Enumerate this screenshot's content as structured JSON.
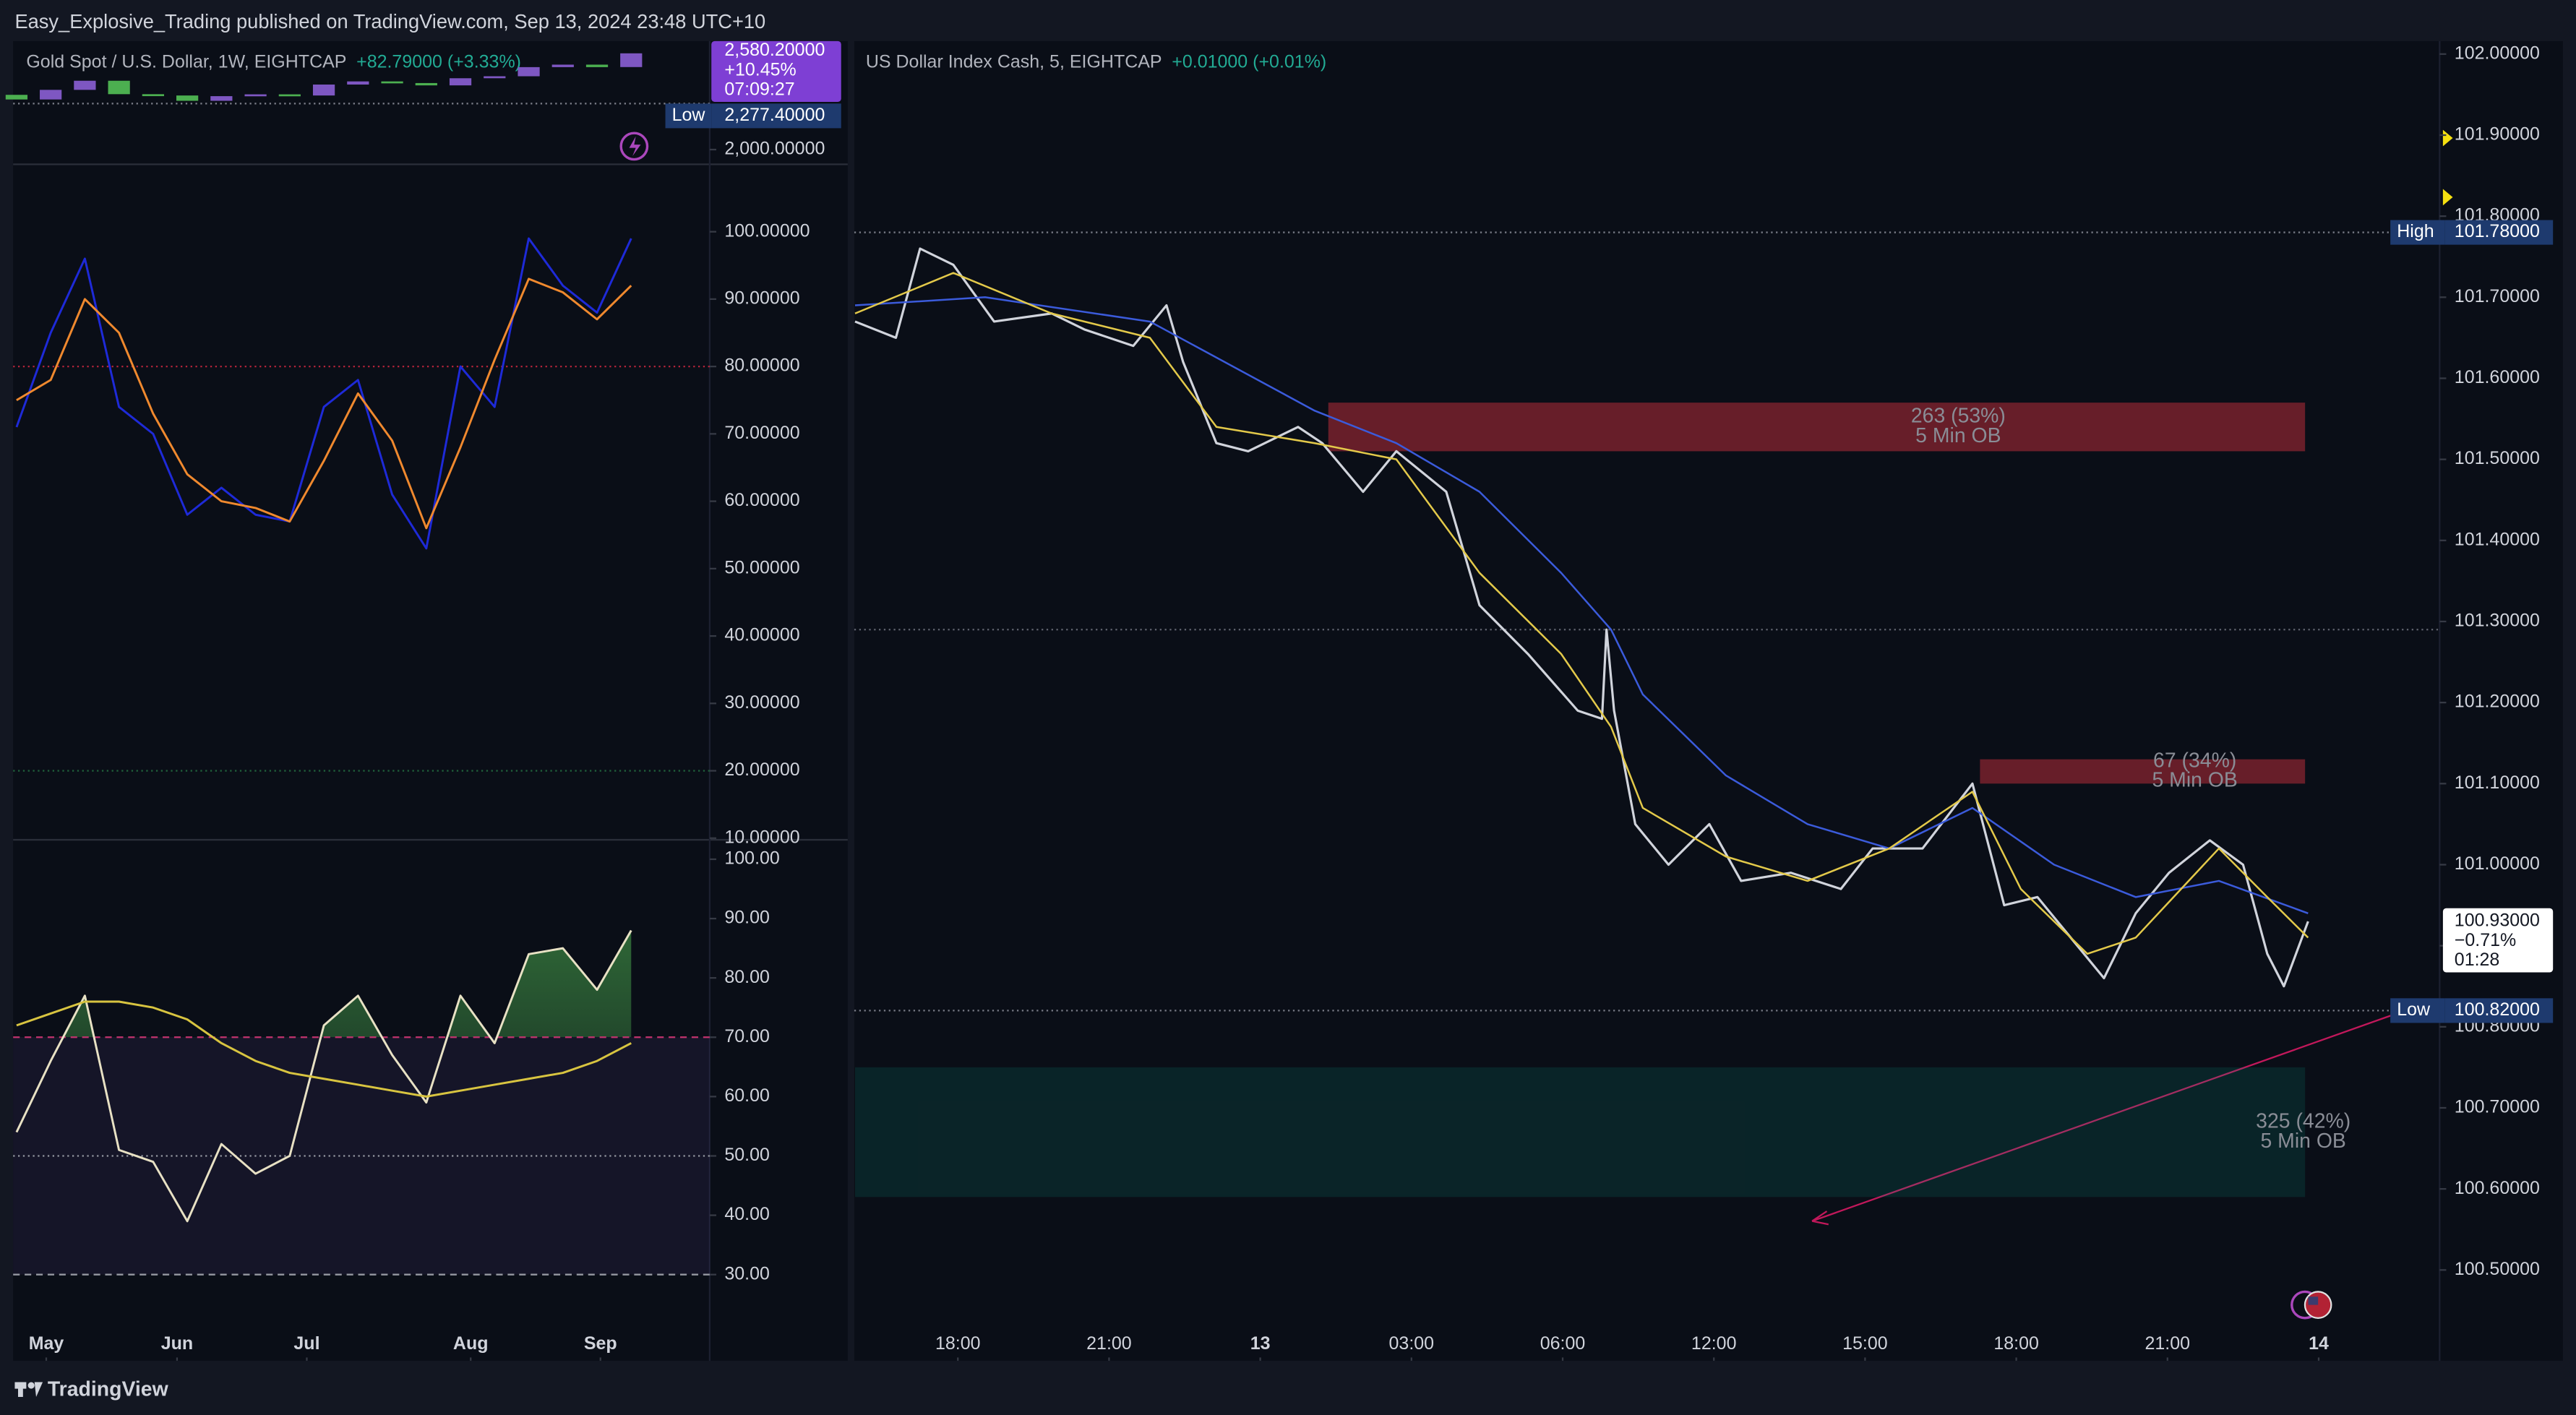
{
  "header": {
    "text": "Easy_Explosive_Trading published on TradingView.com, Sep 13, 2024 23:48 UTC+10"
  },
  "footer": {
    "brand": "TradingView"
  },
  "chart_data": [
    {
      "type": "candlestick",
      "title": "Gold Spot / U.S. Dollar, 1W, EIGHTCAP",
      "change": "+82.79000 (+3.33%)",
      "x": [
        0,
        1,
        2,
        3,
        4,
        5,
        6,
        7,
        8,
        9,
        10,
        11,
        12,
        13,
        14,
        15,
        16,
        17,
        18
      ],
      "open": [
        2330,
        2302,
        2360,
        2415,
        2334,
        2326,
        2294,
        2322,
        2333,
        2326,
        2392,
        2411,
        2401,
        2387,
        2430,
        2442,
        2497,
        2512,
        2497.41
      ],
      "close": [
        2302,
        2360,
        2415,
        2334,
        2326,
        2294,
        2322,
        2333,
        2326,
        2392,
        2411,
        2401,
        2387,
        2430,
        2442,
        2497,
        2512,
        2497,
        2580.2
      ],
      "up_color": "#7e57c2",
      "down_color": "#4caf50",
      "xlim": [
        -0.1,
        20.3
      ],
      "ylim": [
        1911,
        2654
      ],
      "yticks": [
        {
          "value": 2000,
          "label": "2,000.00000"
        }
      ],
      "last_price": {
        "value": 2580.2,
        "label": "2,580.20000"
      },
      "last_change": "+10.45%",
      "countdown": "07:09:27",
      "low": {
        "name": "Low",
        "value": 2277.4,
        "label": "2,277.40000"
      }
    },
    {
      "type": "line",
      "xlim": [
        -0.1,
        20.3
      ],
      "ylim": [
        10,
        110
      ],
      "x": [
        0,
        1,
        2,
        3,
        4,
        5,
        6,
        7,
        8,
        9,
        10,
        11,
        12,
        13,
        14,
        15,
        16,
        17,
        18
      ],
      "series": [
        {
          "color": "#1e2ad8",
          "values": [
            71,
            85,
            96,
            74,
            70,
            58,
            62,
            58,
            57,
            74,
            78,
            61,
            53,
            80,
            74,
            99,
            92,
            88,
            99
          ]
        },
        {
          "color": "#f0892e",
          "values": [
            75,
            78,
            90,
            85,
            73,
            64,
            60,
            59,
            57,
            66,
            76,
            69,
            56,
            68,
            81,
            93,
            91,
            87,
            92
          ]
        }
      ],
      "levels": [
        {
          "value": 80,
          "color": "#b2243a"
        },
        {
          "value": 20,
          "color": "#1f5f3a"
        }
      ],
      "yticks": [
        {
          "value": 100,
          "label": "100.00000"
        },
        {
          "value": 90,
          "label": "90.00000"
        },
        {
          "value": 80,
          "label": "80.00000"
        },
        {
          "value": 70,
          "label": "70.00000"
        },
        {
          "value": 60,
          "label": "60.00000"
        },
        {
          "value": 50,
          "label": "50.00000"
        },
        {
          "value": 40,
          "label": "40.00000"
        },
        {
          "value": 30,
          "label": "30.00000"
        },
        {
          "value": 20,
          "label": "20.00000"
        },
        {
          "value": 10,
          "label": "10.00000"
        }
      ]
    },
    {
      "type": "line",
      "xlim": [
        -0.1,
        20.3
      ],
      "ylim": [
        26,
        103
      ],
      "x": [
        0,
        1,
        2,
        3,
        4,
        5,
        6,
        7,
        8,
        9,
        10,
        11,
        12,
        13,
        14,
        15,
        16,
        17,
        18
      ],
      "series": [
        {
          "color": "#e8e1c4",
          "values": [
            54,
            66,
            77,
            51,
            49,
            39,
            52,
            47,
            50,
            72,
            77,
            67,
            59,
            77,
            69,
            84,
            85,
            78,
            88
          ]
        },
        {
          "color": "#d8c440",
          "values": [
            72,
            74,
            76,
            76,
            75,
            73,
            69,
            66,
            64,
            63,
            62,
            61,
            60,
            61,
            62,
            63,
            64,
            66,
            69
          ]
        }
      ],
      "levels": [
        {
          "value": 70,
          "color": "#c2336e"
        },
        {
          "value": 50,
          "color": "#9598a1"
        },
        {
          "value": 30,
          "color": "#9598a1"
        }
      ],
      "yticks": [
        {
          "value": 100,
          "label": "100.00"
        },
        {
          "value": 90,
          "label": "90.00"
        },
        {
          "value": 80,
          "label": "80.00"
        },
        {
          "value": 70,
          "label": "70.00"
        },
        {
          "value": 60,
          "label": "60.00"
        },
        {
          "value": 50,
          "label": "50.00"
        },
        {
          "value": 40,
          "label": "40.00"
        },
        {
          "value": 30,
          "label": "30.00"
        }
      ],
      "xticks": [
        {
          "value": 0.87,
          "label": "May"
        },
        {
          "value": 4.7,
          "label": "Jun"
        },
        {
          "value": 8.5,
          "label": "Jul"
        },
        {
          "value": 13.3,
          "label": "Aug"
        },
        {
          "value": 17.1,
          "label": "Sep"
        }
      ]
    },
    {
      "type": "line",
      "title": "US Dollar Index Cash, 5, EIGHTCAP",
      "change": "+0.01000 (+0.01%)",
      "xlim": [
        -0.685,
        9.8
      ],
      "ylim": [
        100.388,
        102.016
      ],
      "series": [
        {
          "color": "#d1d4dc",
          "x": [
            -0.68,
            -0.41,
            -0.25,
            -0.03,
            0.24,
            0.62,
            0.84,
            1.16,
            1.38,
            1.49,
            1.71,
            1.92,
            2.25,
            2.41,
            2.68,
            2.9,
            3.23,
            3.45,
            3.77,
            4.1,
            4.26,
            4.29,
            4.34,
            4.48,
            4.7,
            4.97,
            5.18,
            5.51,
            5.84,
            6.05,
            6.38,
            6.71,
            6.92,
            7.14,
            7.36,
            7.58,
            7.79,
            8.01,
            8.28,
            8.5,
            8.66,
            8.77,
            8.93
          ],
          "values": [
            101.67,
            101.65,
            101.76,
            101.74,
            101.67,
            101.68,
            101.66,
            101.64,
            101.69,
            101.62,
            101.52,
            101.51,
            101.54,
            101.52,
            101.46,
            101.51,
            101.46,
            101.32,
            101.26,
            101.19,
            101.18,
            101.29,
            101.19,
            101.05,
            101.0,
            101.05,
            100.98,
            100.99,
            100.97,
            101.02,
            101.02,
            101.1,
            100.95,
            100.96,
            100.91,
            100.86,
            100.94,
            100.99,
            101.03,
            101.0,
            100.89,
            100.85,
            100.93
          ]
        },
        {
          "color": "#e3c94a",
          "x": [
            -0.68,
            -0.03,
            0.62,
            1.27,
            1.71,
            2.36,
            2.9,
            3.45,
            3.99,
            4.32,
            4.53,
            5.08,
            5.62,
            6.16,
            6.71,
            7.03,
            7.47,
            7.79,
            8.34,
            8.66,
            8.93
          ],
          "values": [
            101.68,
            101.73,
            101.68,
            101.65,
            101.54,
            101.52,
            101.5,
            101.36,
            101.26,
            101.17,
            101.07,
            101.01,
            100.98,
            101.02,
            101.09,
            100.97,
            100.89,
            100.91,
            101.02,
            100.96,
            100.91
          ]
        },
        {
          "color": "#3b5bdb",
          "x": [
            -0.68,
            0.18,
            1.27,
            2.36,
            2.9,
            3.45,
            3.99,
            4.32,
            4.53,
            5.08,
            5.62,
            6.16,
            6.71,
            7.25,
            7.79,
            8.34,
            8.93
          ],
          "values": [
            101.69,
            101.7,
            101.67,
            101.56,
            101.52,
            101.46,
            101.36,
            101.29,
            101.21,
            101.11,
            101.05,
            101.02,
            101.07,
            101.0,
            100.96,
            100.98,
            100.94
          ]
        }
      ],
      "boxes": [
        {
          "from": 2.45,
          "to": 8.91,
          "y": [
            101.51,
            101.57
          ],
          "color": "#f23645",
          "label": "263 (53%)",
          "sublabel": "5 Min OB"
        },
        {
          "from": 6.76,
          "to": 8.91,
          "y": [
            101.1,
            101.13
          ],
          "color": "#f23645",
          "label": "67 (34%)",
          "sublabel": "5 Min OB"
        },
        {
          "from": -0.68,
          "to": 8.91,
          "y": [
            100.59,
            100.75
          ],
          "color": "#089981",
          "label": "325 (42%)",
          "sublabel": "5 Min OB"
        }
      ],
      "levels": [
        101.29
      ],
      "high": {
        "name": "High",
        "value": 101.78,
        "label": "101.78000"
      },
      "low": {
        "name": "Low",
        "value": 100.82,
        "label": "100.82000"
      },
      "last": {
        "value": 100.93,
        "label": "100.93000",
        "change": "−0.71%",
        "countdown": "01:28"
      },
      "yticks": [
        {
          "value": 102.0,
          "label": "102.00000"
        },
        {
          "value": 101.9,
          "label": "101.90000"
        },
        {
          "value": 101.8,
          "label": "101.80000"
        },
        {
          "value": 101.7,
          "label": "101.70000"
        },
        {
          "value": 101.6,
          "label": "101.60000"
        },
        {
          "value": 101.5,
          "label": "101.50000"
        },
        {
          "value": 101.4,
          "label": "101.40000"
        },
        {
          "value": 101.3,
          "label": "101.30000"
        },
        {
          "value": 101.2,
          "label": "101.20000"
        },
        {
          "value": 101.1,
          "label": "101.10000"
        },
        {
          "value": 101.0,
          "label": "101.00000"
        },
        {
          "value": 100.9,
          "label": "100.90000"
        },
        {
          "value": 100.8,
          "label": "100.80000"
        },
        {
          "value": 100.7,
          "label": "100.70000"
        },
        {
          "value": 100.6,
          "label": "100.60000"
        },
        {
          "value": 100.5,
          "label": "100.50000"
        }
      ],
      "xticks": [
        {
          "value": 0,
          "label": "18:00"
        },
        {
          "value": 1,
          "label": "21:00"
        },
        {
          "value": 2,
          "label": "13"
        },
        {
          "value": 3,
          "label": "03:00"
        },
        {
          "value": 4,
          "label": "06:00"
        },
        {
          "value": 5,
          "label": "12:00"
        },
        {
          "value": 6,
          "label": "15:00"
        },
        {
          "value": 7,
          "label": "18:00"
        },
        {
          "value": 8,
          "label": "21:00"
        },
        {
          "value": 9,
          "label": "14"
        }
      ]
    }
  ]
}
